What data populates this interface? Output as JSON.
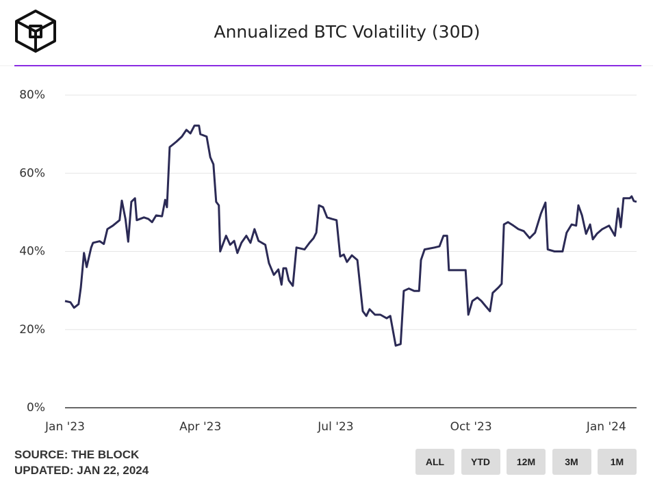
{
  "chart_data": {
    "type": "line",
    "title": "Annualized BTC Volatility (30D)",
    "xlim": [
      0,
      12.67
    ],
    "xticks": [
      {
        "value": 0,
        "label": "Jan '23"
      },
      {
        "value": 3,
        "label": "Apr '23"
      },
      {
        "value": 6,
        "label": "Jul '23"
      },
      {
        "value": 9,
        "label": "Oct '23"
      },
      {
        "value": 12,
        "label": "Jan '24"
      }
    ],
    "ylim": [
      0,
      80
    ],
    "yticks": [
      {
        "value": 0,
        "label": "0%"
      },
      {
        "value": 20,
        "label": "20%"
      },
      {
        "value": 40,
        "label": "40%"
      },
      {
        "value": 60,
        "label": "60%"
      },
      {
        "value": 80,
        "label": "80%"
      }
    ],
    "grid": true,
    "series": [
      {
        "name": "BTC Volatility",
        "color": "#2b2a55",
        "x": [
          0,
          0.12,
          0.2,
          0.3,
          0.35,
          0.42,
          0.48,
          0.58,
          0.62,
          0.77,
          0.86,
          0.94,
          1.06,
          1.21,
          1.26,
          1.34,
          1.4,
          1.47,
          1.55,
          1.59,
          1.75,
          1.85,
          1.93,
          2.02,
          2.15,
          2.22,
          2.26,
          2.32,
          2.47,
          2.59,
          2.69,
          2.78,
          2.87,
          2.97,
          3.0,
          3.14,
          3.22,
          3.29,
          3.35,
          3.41,
          3.44,
          3.57,
          3.66,
          3.75,
          3.82,
          3.91,
          4.02,
          4.11,
          4.2,
          4.29,
          4.44,
          4.52,
          4.63,
          4.73,
          4.8,
          4.84,
          4.9,
          4.96,
          5.05,
          5.13,
          5.31,
          5.42,
          5.51,
          5.57,
          5.63,
          5.72,
          5.81,
          5.92,
          6.02,
          6.1,
          6.18,
          6.25,
          6.36,
          6.48,
          6.6,
          6.68,
          6.75,
          6.87,
          6.99,
          7.13,
          7.21,
          7.33,
          7.44,
          7.51,
          7.62,
          7.74,
          7.85,
          7.89,
          7.97,
          8.19,
          8.3,
          8.39,
          8.47,
          8.51,
          8.65,
          8.76,
          8.88,
          8.94,
          9.03,
          9.14,
          9.23,
          9.33,
          9.42,
          9.48,
          9.61,
          9.68,
          9.73,
          9.82,
          9.94,
          10.05,
          10.17,
          10.3,
          10.42,
          10.55,
          10.65,
          10.7,
          10.85,
          11.03,
          11.12,
          11.23,
          11.33,
          11.38,
          11.46,
          11.55,
          11.64,
          11.7,
          11.79,
          11.91,
          12.06,
          12.19,
          12.26,
          12.32,
          12.38,
          12.52,
          12.56,
          12.61,
          12.67
        ],
        "values": [
          27.3,
          27,
          25.6,
          26.5,
          30.8,
          39.6,
          36,
          41,
          42.2,
          42.6,
          41.9,
          45.7,
          46.6,
          48,
          53,
          48.3,
          42.5,
          52.7,
          53.6,
          48,
          48.7,
          48.3,
          47.5,
          49.2,
          49,
          53.2,
          51.3,
          66.7,
          68.1,
          69.4,
          71.1,
          70.2,
          72.2,
          72.2,
          70,
          69.4,
          64.1,
          62.3,
          52.7,
          51.8,
          40,
          44,
          41.7,
          42.7,
          39.6,
          42.2,
          44,
          42.2,
          45.7,
          42.7,
          41.7,
          37,
          34,
          35.4,
          31.5,
          35.7,
          35.7,
          32.6,
          31.2,
          41,
          40.5,
          42.2,
          43.4,
          44.8,
          51.8,
          51.3,
          48.7,
          48.3,
          48,
          38.7,
          39.2,
          37.3,
          39,
          37.8,
          24.7,
          23.5,
          25.2,
          23.8,
          23.8,
          22.9,
          23.5,
          15.9,
          16.3,
          29.9,
          30.5,
          29.9,
          29.9,
          37.8,
          40.5,
          41,
          41.3,
          44,
          44,
          35.2,
          35.2,
          35.2,
          35.2,
          23.8,
          27.3,
          28.2,
          27.3,
          25.9,
          24.7,
          29.4,
          30.8,
          31.7,
          46.9,
          47.5,
          46.6,
          45.7,
          45.2,
          43.4,
          44.8,
          49.7,
          52.5,
          40.5,
          40,
          40,
          44.8,
          46.9,
          46.6,
          51.8,
          49.2,
          44.5,
          46.9,
          43.1,
          44.5,
          45.7,
          46.6,
          44,
          51,
          46.2,
          53.6,
          53.6,
          54.1,
          52.9,
          52.7
        ]
      }
    ]
  },
  "source": "SOURCE: THE BLOCK",
  "updated": "UPDATED: JAN 22, 2024",
  "buttons": [
    "ALL",
    "YTD",
    "12M",
    "3M",
    "1M"
  ]
}
